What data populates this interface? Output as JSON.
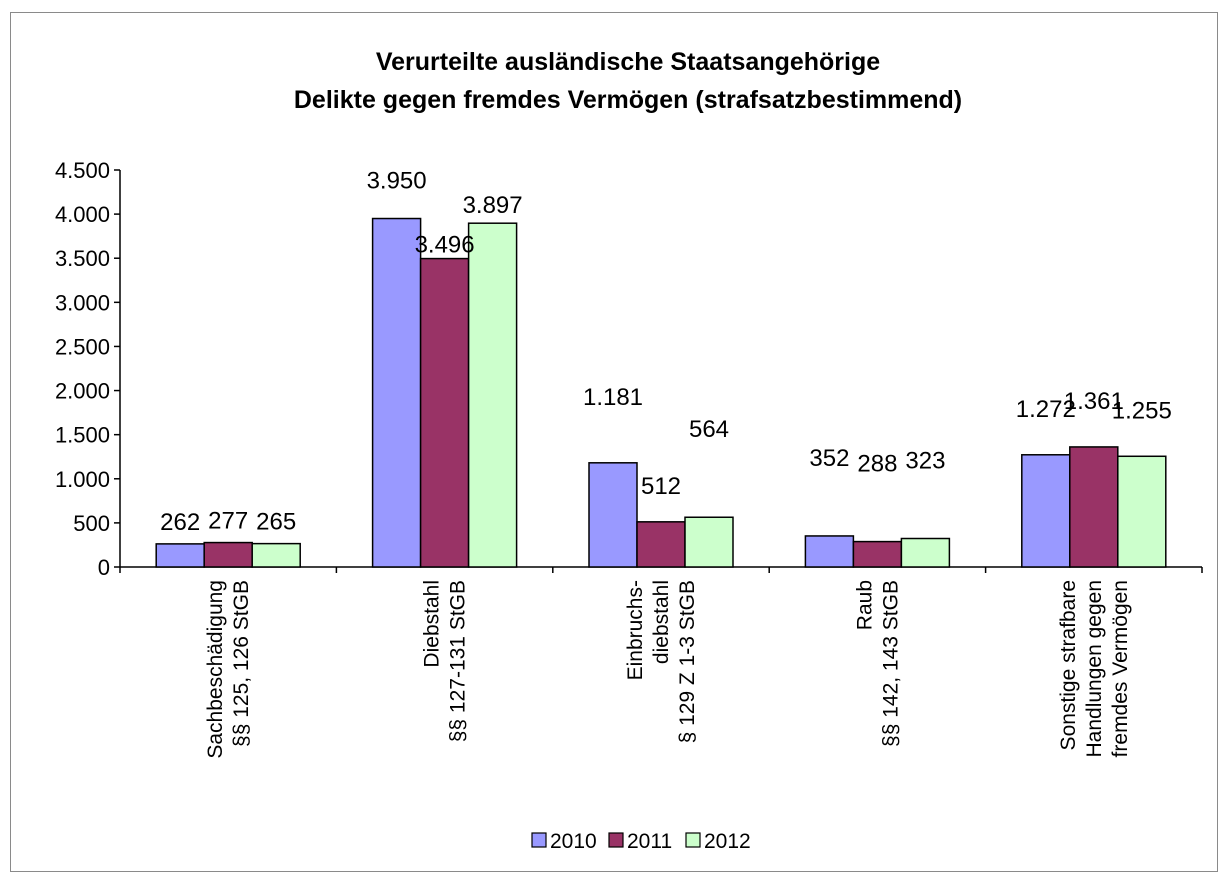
{
  "chart_data": {
    "type": "bar",
    "title": "Verurteilte ausländische Staatsangehörige",
    "subtitle": "Delikte gegen fremdes Vermögen (strafsatzbestimmend)",
    "categories": [
      [
        "Sachbeschädigung",
        "§§ 125, 126 StGB"
      ],
      [
        "Diebstahl",
        "§§ 127-131 StGB"
      ],
      [
        "Einbruchs-",
        "diebstahl",
        "§ 129 Z 1-3 StGB"
      ],
      [
        "Raub",
        "§§ 142, 143 StGB"
      ],
      [
        "Sonstige strafbare",
        "Handlungen gegen",
        "fremdes Vermögen"
      ]
    ],
    "series": [
      {
        "name": "2010",
        "color": "#9999ff",
        "values": [
          262,
          3950,
          1181,
          352,
          1272
        ],
        "labels": [
          "262",
          "3.950",
          "1.181",
          "352",
          "1.272"
        ]
      },
      {
        "name": "2011",
        "color": "#993366",
        "values": [
          277,
          3496,
          512,
          288,
          1361
        ],
        "labels": [
          "277",
          "3.496",
          "512",
          "288",
          "1.361"
        ]
      },
      {
        "name": "2012",
        "color": "#ccffcc",
        "values": [
          265,
          3897,
          564,
          323,
          1255
        ],
        "labels": [
          "265",
          "3.897",
          "564",
          "323",
          "1.255"
        ]
      }
    ],
    "ylim": [
      0,
      4500
    ],
    "yticks": [
      {
        "value": 0,
        "label": "0"
      },
      {
        "value": 500,
        "label": "500"
      },
      {
        "value": 1000,
        "label": "1.000"
      },
      {
        "value": 1500,
        "label": "1.500"
      },
      {
        "value": 2000,
        "label": "2.000"
      },
      {
        "value": 2500,
        "label": "2.500"
      },
      {
        "value": 3000,
        "label": "3.000"
      },
      {
        "value": 3500,
        "label": "3.500"
      },
      {
        "value": 4000,
        "label": "4.000"
      },
      {
        "value": 4500,
        "label": "4.500"
      }
    ],
    "grid": false,
    "legend": "bottom"
  }
}
